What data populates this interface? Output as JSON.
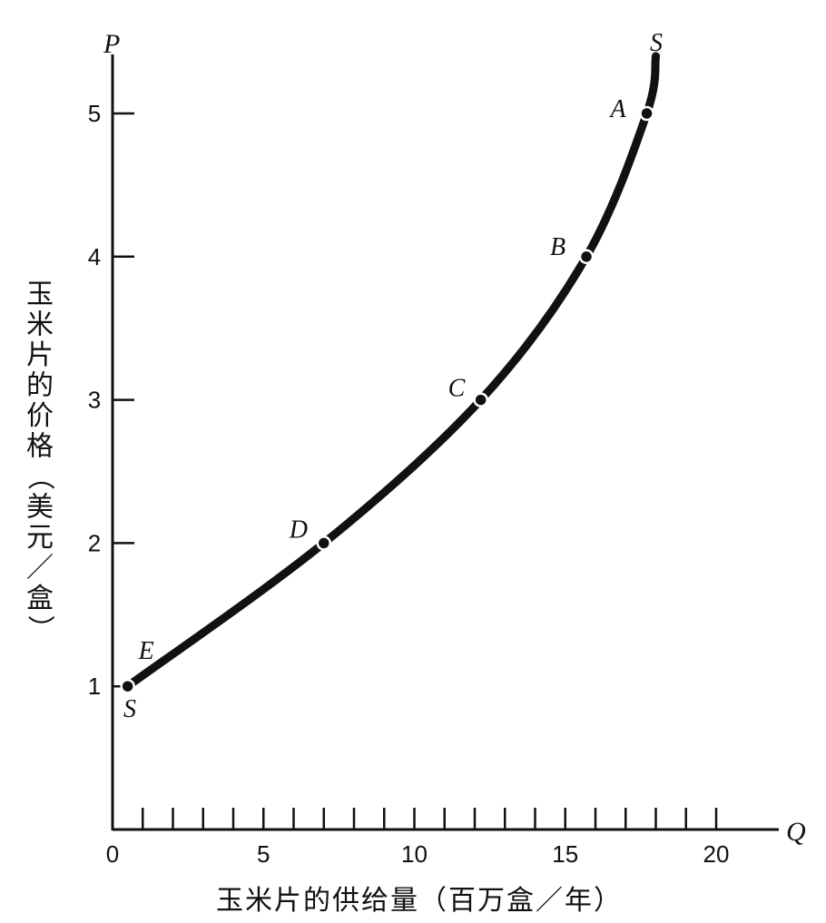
{
  "chart_data": {
    "type": "line",
    "title": "",
    "xlabel": "玉米片的供给量（百万盒／年）",
    "ylabel": "玉米片的价格（美元／盒）",
    "x_axis_symbol": "Q",
    "y_axis_symbol": "P",
    "xlim": [
      0,
      22
    ],
    "ylim": [
      0,
      5.5
    ],
    "x_ticks": [
      0,
      5,
      10,
      15,
      20
    ],
    "x_tick_labels": [
      "0",
      "5",
      "10",
      "15",
      "20"
    ],
    "x_minor_tick_step": 1,
    "y_ticks": [
      1,
      2,
      3,
      4,
      5
    ],
    "y_tick_labels": [
      "1",
      "2",
      "3",
      "4",
      "5"
    ],
    "grid": false,
    "series": [
      {
        "curve_labels": [
          "S",
          "S"
        ],
        "x": [
          0.5,
          7.0,
          12.2,
          15.7,
          17.7,
          18.0
        ],
        "y": [
          1,
          2,
          3,
          4,
          5,
          5.4
        ]
      }
    ],
    "points": [
      {
        "label": "A",
        "x": 17.7,
        "y": 5
      },
      {
        "label": "B",
        "x": 15.7,
        "y": 4
      },
      {
        "label": "C",
        "x": 12.2,
        "y": 3
      },
      {
        "label": "D",
        "x": 7.0,
        "y": 2
      },
      {
        "label": "E",
        "x": 0.5,
        "y": 1
      }
    ]
  }
}
